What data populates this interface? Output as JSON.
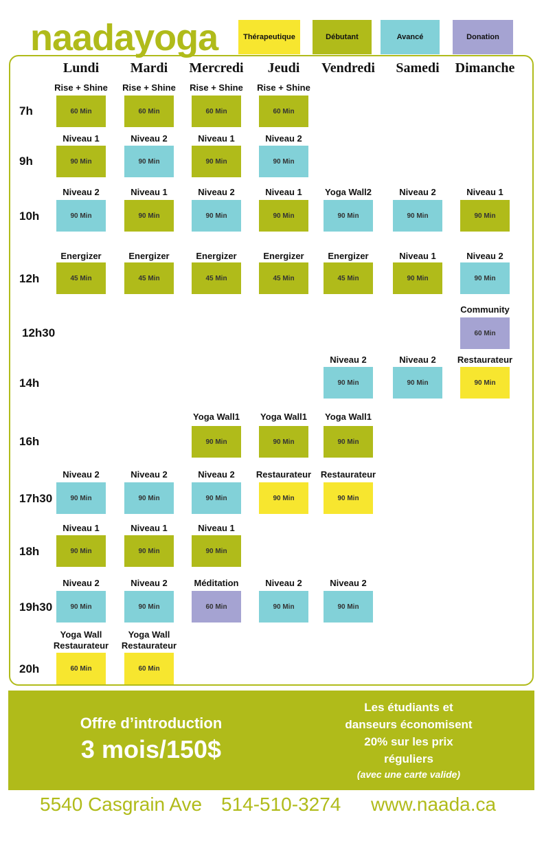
{
  "brand": {
    "logo": "naadayoga",
    "color": "#b0bb1a"
  },
  "legend": [
    {
      "label": "Thérapeutique",
      "color": "#f7e62f"
    },
    {
      "label": "Débutant",
      "color": "#b0bb1a"
    },
    {
      "label": "Avancé",
      "color": "#82d1d8"
    },
    {
      "label": "Donation",
      "color": "#a5a3d2"
    }
  ],
  "days": [
    "Lundi",
    "Mardi",
    "Mercredi",
    "Jeudi",
    "Vendredi",
    "Samedi",
    "Dimanche"
  ],
  "times": [
    "7h",
    "9h",
    "10h",
    "12h",
    "12h30",
    "14h",
    "16h",
    "17h30",
    "18h",
    "19h30",
    "20h"
  ],
  "classes": [
    {
      "day": 0,
      "time": "7h",
      "name": "Rise + Shine",
      "duration": "60 Min",
      "category": "Débutant"
    },
    {
      "day": 1,
      "time": "7h",
      "name": "Rise + Shine",
      "duration": "60 Min",
      "category": "Débutant"
    },
    {
      "day": 2,
      "time": "7h",
      "name": "Rise + Shine",
      "duration": "60 Min",
      "category": "Débutant"
    },
    {
      "day": 3,
      "time": "7h",
      "name": "Rise + Shine",
      "duration": "60 Min",
      "category": "Débutant"
    },
    {
      "day": 0,
      "time": "9h",
      "name": "Niveau 1",
      "duration": "90 Min",
      "category": "Débutant"
    },
    {
      "day": 1,
      "time": "9h",
      "name": "Niveau 2",
      "duration": "90 Min",
      "category": "Avancé"
    },
    {
      "day": 2,
      "time": "9h",
      "name": "Niveau 1",
      "duration": "90 Min",
      "category": "Débutant"
    },
    {
      "day": 3,
      "time": "9h",
      "name": "Niveau 2",
      "duration": "90 Min",
      "category": "Avancé"
    },
    {
      "day": 0,
      "time": "10h",
      "name": "Niveau 2",
      "duration": "90 Min",
      "category": "Avancé"
    },
    {
      "day": 1,
      "time": "10h",
      "name": "Niveau 1",
      "duration": "90 Min",
      "category": "Débutant"
    },
    {
      "day": 2,
      "time": "10h",
      "name": "Niveau 2",
      "duration": "90 Min",
      "category": "Avancé"
    },
    {
      "day": 3,
      "time": "10h",
      "name": "Niveau 1",
      "duration": "90 Min",
      "category": "Débutant"
    },
    {
      "day": 4,
      "time": "10h",
      "name": "Yoga Wall2",
      "duration": "90 Min",
      "category": "Avancé"
    },
    {
      "day": 5,
      "time": "10h",
      "name": "Niveau 2",
      "duration": "90 Min",
      "category": "Avancé"
    },
    {
      "day": 6,
      "time": "10h",
      "name": "Niveau 1",
      "duration": "90 Min",
      "category": "Débutant"
    },
    {
      "day": 0,
      "time": "12h",
      "name": "Energizer",
      "duration": "45 Min",
      "category": "Débutant"
    },
    {
      "day": 1,
      "time": "12h",
      "name": "Energizer",
      "duration": "45 Min",
      "category": "Débutant"
    },
    {
      "day": 2,
      "time": "12h",
      "name": "Energizer",
      "duration": "45 Min",
      "category": "Débutant"
    },
    {
      "day": 3,
      "time": "12h",
      "name": "Energizer",
      "duration": "45 Min",
      "category": "Débutant"
    },
    {
      "day": 4,
      "time": "12h",
      "name": "Energizer",
      "duration": "45 Min",
      "category": "Débutant"
    },
    {
      "day": 5,
      "time": "12h",
      "name": "Niveau 1",
      "duration": "90 Min",
      "category": "Débutant"
    },
    {
      "day": 6,
      "time": "12h",
      "name": "Niveau 2",
      "duration": "90 Min",
      "category": "Avancé"
    },
    {
      "day": 6,
      "time": "12h30",
      "name": "Community",
      "duration": "60 Min",
      "category": "Donation"
    },
    {
      "day": 4,
      "time": "14h",
      "name": "Niveau 2",
      "duration": "90 Min",
      "category": "Avancé"
    },
    {
      "day": 5,
      "time": "14h",
      "name": "Niveau 2",
      "duration": "90 Min",
      "category": "Avancé"
    },
    {
      "day": 6,
      "time": "14h",
      "name": "Restaurateur",
      "duration": "90 Min",
      "category": "Thérapeutique"
    },
    {
      "day": 2,
      "time": "16h",
      "name": "Yoga Wall1",
      "duration": "90 Min",
      "category": "Débutant"
    },
    {
      "day": 3,
      "time": "16h",
      "name": "Yoga Wall1",
      "duration": "90 Min",
      "category": "Débutant"
    },
    {
      "day": 4,
      "time": "16h",
      "name": "Yoga Wall1",
      "duration": "90 Min",
      "category": "Débutant"
    },
    {
      "day": 0,
      "time": "17h30",
      "name": "Niveau 2",
      "duration": "90 Min",
      "category": "Avancé"
    },
    {
      "day": 1,
      "time": "17h30",
      "name": "Niveau 2",
      "duration": "90 Min",
      "category": "Avancé"
    },
    {
      "day": 2,
      "time": "17h30",
      "name": "Niveau 2",
      "duration": "90 Min",
      "category": "Avancé"
    },
    {
      "day": 3,
      "time": "17h30",
      "name": "Restaurateur",
      "duration": "90 Min",
      "category": "Thérapeutique"
    },
    {
      "day": 4,
      "time": "17h30",
      "name": "Restaurateur",
      "duration": "90 Min",
      "category": "Thérapeutique"
    },
    {
      "day": 0,
      "time": "18h",
      "name": "Niveau 1",
      "duration": "90 Min",
      "category": "Débutant"
    },
    {
      "day": 1,
      "time": "18h",
      "name": "Niveau 1",
      "duration": "90 Min",
      "category": "Débutant"
    },
    {
      "day": 2,
      "time": "18h",
      "name": "Niveau 1",
      "duration": "90 Min",
      "category": "Débutant"
    },
    {
      "day": 0,
      "time": "19h30",
      "name": "Niveau 2",
      "duration": "90 Min",
      "category": "Avancé"
    },
    {
      "day": 1,
      "time": "19h30",
      "name": "Niveau 2",
      "duration": "90 Min",
      "category": "Avancé"
    },
    {
      "day": 2,
      "time": "19h30",
      "name": "Méditation",
      "duration": "60 Min",
      "category": "Donation"
    },
    {
      "day": 3,
      "time": "19h30",
      "name": "Niveau 2",
      "duration": "90 Min",
      "category": "Avancé"
    },
    {
      "day": 4,
      "time": "19h30",
      "name": "Niveau 2",
      "duration": "90 Min",
      "category": "Avancé"
    },
    {
      "day": 0,
      "time": "20h",
      "name": "Yoga Wall\nRestaurateur",
      "duration": "60 Min",
      "category": "Thérapeutique"
    },
    {
      "day": 1,
      "time": "20h",
      "name": "Yoga Wall\nRestaurateur",
      "duration": "60 Min",
      "category": "Thérapeutique"
    }
  ],
  "offer": {
    "title": "Offre d’introduction",
    "price": "3 mois/150$"
  },
  "students": {
    "line1": "Les étudiants et",
    "line2": "danseurs économisent",
    "line3": "20% sur les prix",
    "line4": "réguliers",
    "note": "(avec une carte valide)"
  },
  "footer": {
    "address": "5540 Casgrain Ave",
    "phone": "514-510-3274",
    "website": "www.naada.ca"
  }
}
